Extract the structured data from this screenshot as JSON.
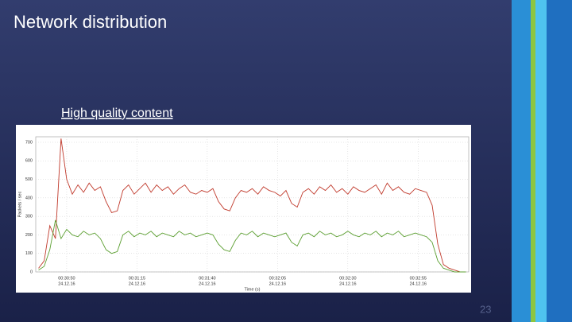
{
  "slide": {
    "title": "Network distribution",
    "subtitle": "High quality content",
    "page_number": "23"
  },
  "chart_data": {
    "type": "line",
    "y_label": "Packets / sec",
    "x_label": "Time (s)",
    "x": [
      "00:30:40",
      "00:30:42",
      "00:30:44",
      "00:30:46",
      "00:30:48",
      "00:30:50",
      "00:30:52",
      "00:30:54",
      "00:30:56",
      "00:30:58",
      "00:31:00",
      "00:31:02",
      "00:31:04",
      "00:31:06",
      "00:31:08",
      "00:31:10",
      "00:31:12",
      "00:31:14",
      "00:31:16",
      "00:31:18",
      "00:31:20",
      "00:31:22",
      "00:31:24",
      "00:31:26",
      "00:31:28",
      "00:31:30",
      "00:31:32",
      "00:31:34",
      "00:31:36",
      "00:31:38",
      "00:31:40",
      "00:31:42",
      "00:31:44",
      "00:31:46",
      "00:31:48",
      "00:31:50",
      "00:31:52",
      "00:31:54",
      "00:31:56",
      "00:31:58",
      "00:32:00",
      "00:32:02",
      "00:32:04",
      "00:32:06",
      "00:32:08",
      "00:32:10",
      "00:32:12",
      "00:32:14",
      "00:32:16",
      "00:32:18",
      "00:32:20",
      "00:32:22",
      "00:32:24",
      "00:32:26",
      "00:32:28",
      "00:32:30",
      "00:32:32",
      "00:32:34",
      "00:32:36",
      "00:32:38",
      "00:32:40",
      "00:32:42",
      "00:32:44",
      "00:32:46",
      "00:32:48",
      "00:32:50",
      "00:32:52",
      "00:32:54",
      "00:32:56",
      "00:32:58",
      "00:33:00",
      "00:33:02",
      "00:33:04",
      "00:33:06",
      "00:33:08",
      "00:33:10",
      "00:33:12"
    ],
    "series": [
      {
        "color": "#c0392b",
        "values": [
          20,
          60,
          250,
          180,
          720,
          500,
          420,
          470,
          430,
          480,
          440,
          460,
          380,
          320,
          330,
          440,
          470,
          420,
          450,
          480,
          430,
          470,
          440,
          460,
          420,
          450,
          470,
          430,
          420,
          440,
          430,
          450,
          380,
          340,
          330,
          400,
          440,
          430,
          450,
          420,
          460,
          440,
          430,
          410,
          440,
          370,
          350,
          430,
          450,
          420,
          460,
          440,
          470,
          430,
          450,
          420,
          460,
          440,
          430,
          450,
          470,
          420,
          480,
          440,
          460,
          430,
          420,
          450,
          440,
          430,
          360,
          150,
          40,
          20,
          10,
          0,
          0
        ]
      },
      {
        "color": "#5a9e2f",
        "values": [
          10,
          30,
          120,
          280,
          180,
          230,
          200,
          190,
          220,
          200,
          210,
          180,
          120,
          100,
          110,
          200,
          220,
          190,
          210,
          200,
          220,
          190,
          210,
          200,
          190,
          220,
          200,
          210,
          190,
          200,
          210,
          200,
          150,
          120,
          110,
          170,
          210,
          200,
          220,
          190,
          210,
          200,
          190,
          200,
          210,
          160,
          140,
          200,
          210,
          190,
          220,
          200,
          210,
          190,
          200,
          220,
          200,
          190,
          210,
          200,
          220,
          190,
          210,
          200,
          220,
          190,
          200,
          210,
          200,
          190,
          160,
          60,
          20,
          10,
          0,
          0,
          0
        ]
      }
    ],
    "xlim": [
      "00:30:39",
      "00:33:13"
    ],
    "xticks": [
      "00:30:50",
      "00:31:15",
      "00:31:40",
      "00:32:05",
      "00:32:30",
      "00:32:55"
    ],
    "xtick_dates": [
      "24.12.16",
      "24.12.16",
      "24.12.16",
      "24.12.16",
      "24.12.16",
      "24.12.16"
    ],
    "ylim": [
      0,
      730
    ],
    "yticks": [
      0,
      100,
      200,
      300,
      400,
      500,
      600,
      700
    ],
    "grid": true
  }
}
